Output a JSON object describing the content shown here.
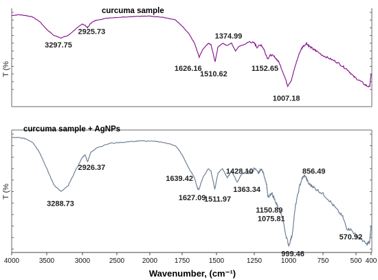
{
  "chart_data": {
    "type": "line",
    "xlabel": "Wavenumber, (cm⁻¹)",
    "xlim": [
      4000,
      400
    ],
    "x_reversed": true,
    "x_ticks": [
      "4000",
      "3500",
      "3000",
      "2500",
      "2000",
      "1750",
      "1500",
      "1250",
      "1000",
      "750",
      "500",
      "400"
    ],
    "grid": false,
    "panels": [
      {
        "title": "curcuma sample",
        "ylabel": "T (%",
        "color": "#8B1A8F",
        "peaks": [
          {
            "x": 3297.75,
            "label": "3297.75"
          },
          {
            "x": 2925.73,
            "label": "2925.73"
          },
          {
            "x": 1626.16,
            "label": "1626.16"
          },
          {
            "x": 1510.62,
            "label": "1510.62"
          },
          {
            "x": 1374.99,
            "label": "1374.99"
          },
          {
            "x": 1152.65,
            "label": "1152.65"
          },
          {
            "x": 1007.18,
            "label": "1007.18"
          }
        ],
        "points": [
          [
            4000,
            0.96
          ],
          [
            3900,
            0.97
          ],
          [
            3800,
            0.96
          ],
          [
            3700,
            0.94
          ],
          [
            3600,
            0.88
          ],
          [
            3500,
            0.78
          ],
          [
            3400,
            0.7
          ],
          [
            3300,
            0.67
          ],
          [
            3200,
            0.7
          ],
          [
            3100,
            0.78
          ],
          [
            3000,
            0.85
          ],
          [
            2960,
            0.83
          ],
          [
            2926,
            0.8
          ],
          [
            2880,
            0.86
          ],
          [
            2800,
            0.9
          ],
          [
            2600,
            0.93
          ],
          [
            2400,
            0.94
          ],
          [
            2200,
            0.95
          ],
          [
            2000,
            0.95
          ],
          [
            1900,
            0.94
          ],
          [
            1800,
            0.9
          ],
          [
            1750,
            0.82
          ],
          [
            1700,
            0.72
          ],
          [
            1660,
            0.6
          ],
          [
            1626,
            0.42
          ],
          [
            1600,
            0.52
          ],
          [
            1560,
            0.6
          ],
          [
            1540,
            0.58
          ],
          [
            1510,
            0.36
          ],
          [
            1490,
            0.55
          ],
          [
            1460,
            0.6
          ],
          [
            1430,
            0.57
          ],
          [
            1400,
            0.6
          ],
          [
            1375,
            0.5
          ],
          [
            1350,
            0.56
          ],
          [
            1320,
            0.58
          ],
          [
            1280,
            0.62
          ],
          [
            1250,
            0.6
          ],
          [
            1230,
            0.55
          ],
          [
            1200,
            0.58
          ],
          [
            1180,
            0.52
          ],
          [
            1153,
            0.4
          ],
          [
            1130,
            0.45
          ],
          [
            1100,
            0.42
          ],
          [
            1070,
            0.35
          ],
          [
            1040,
            0.22
          ],
          [
            1007,
            0.05
          ],
          [
            980,
            0.12
          ],
          [
            950,
            0.32
          ],
          [
            920,
            0.48
          ],
          [
            900,
            0.55
          ],
          [
            870,
            0.6
          ],
          [
            850,
            0.56
          ],
          [
            820,
            0.52
          ],
          [
            800,
            0.5
          ],
          [
            750,
            0.44
          ],
          [
            700,
            0.4
          ],
          [
            650,
            0.36
          ],
          [
            600,
            0.3
          ],
          [
            560,
            0.25
          ],
          [
            520,
            0.17
          ],
          [
            480,
            0.12
          ],
          [
            440,
            0.06
          ],
          [
            410,
            0.03
          ],
          [
            400,
            0.2
          ]
        ]
      },
      {
        "title": "curcuma sample + AgNPs",
        "ylabel": "T (%",
        "color": "#6E7F95",
        "peaks": [
          {
            "x": 3288.73,
            "label": "3288.73"
          },
          {
            "x": 2926.37,
            "label": "2926.37"
          },
          {
            "x": 1639.42,
            "label": "1639.42"
          },
          {
            "x": 1627.09,
            "label": "1627.09"
          },
          {
            "x": 1511.97,
            "label": "1511.97"
          },
          {
            "x": 1428.1,
            "label": "1428.10"
          },
          {
            "x": 1363.34,
            "label": "1363.34"
          },
          {
            "x": 1150.89,
            "label": "1150.89"
          },
          {
            "x": 1075.81,
            "label": "1075.81"
          },
          {
            "x": 999.46,
            "label": "999.46"
          },
          {
            "x": 856.49,
            "label": "856.49"
          },
          {
            "x": 570.92,
            "label": "570.92"
          }
        ],
        "points": [
          [
            4000,
            0.97
          ],
          [
            3900,
            0.97
          ],
          [
            3800,
            0.96
          ],
          [
            3700,
            0.93
          ],
          [
            3600,
            0.84
          ],
          [
            3500,
            0.7
          ],
          [
            3400,
            0.56
          ],
          [
            3300,
            0.5
          ],
          [
            3200,
            0.55
          ],
          [
            3100,
            0.68
          ],
          [
            3000,
            0.8
          ],
          [
            2960,
            0.82
          ],
          [
            2926,
            0.76
          ],
          [
            2880,
            0.84
          ],
          [
            2800,
            0.88
          ],
          [
            2600,
            0.92
          ],
          [
            2400,
            0.93
          ],
          [
            2200,
            0.94
          ],
          [
            2000,
            0.94
          ],
          [
            1900,
            0.93
          ],
          [
            1800,
            0.9
          ],
          [
            1750,
            0.82
          ],
          [
            1700,
            0.7
          ],
          [
            1660,
            0.62
          ],
          [
            1639,
            0.53
          ],
          [
            1627,
            0.52
          ],
          [
            1600,
            0.62
          ],
          [
            1560,
            0.7
          ],
          [
            1540,
            0.68
          ],
          [
            1512,
            0.52
          ],
          [
            1490,
            0.66
          ],
          [
            1460,
            0.7
          ],
          [
            1428,
            0.62
          ],
          [
            1400,
            0.68
          ],
          [
            1363,
            0.58
          ],
          [
            1340,
            0.64
          ],
          [
            1300,
            0.68
          ],
          [
            1270,
            0.66
          ],
          [
            1250,
            0.7
          ],
          [
            1220,
            0.66
          ],
          [
            1200,
            0.7
          ],
          [
            1180,
            0.65
          ],
          [
            1160,
            0.56
          ],
          [
            1151,
            0.45
          ],
          [
            1120,
            0.48
          ],
          [
            1090,
            0.4
          ],
          [
            1076,
            0.35
          ],
          [
            1050,
            0.3
          ],
          [
            1020,
            0.12
          ],
          [
            999,
            0.03
          ],
          [
            975,
            0.12
          ],
          [
            950,
            0.38
          ],
          [
            920,
            0.55
          ],
          [
            900,
            0.62
          ],
          [
            880,
            0.64
          ],
          [
            856,
            0.57
          ],
          [
            830,
            0.55
          ],
          [
            800,
            0.52
          ],
          [
            750,
            0.48
          ],
          [
            700,
            0.42
          ],
          [
            650,
            0.35
          ],
          [
            600,
            0.28
          ],
          [
            571,
            0.18
          ],
          [
            540,
            0.17
          ],
          [
            500,
            0.12
          ],
          [
            460,
            0.08
          ],
          [
            430,
            0.04
          ],
          [
            410,
            0.06
          ],
          [
            400,
            0.2
          ]
        ]
      }
    ]
  }
}
